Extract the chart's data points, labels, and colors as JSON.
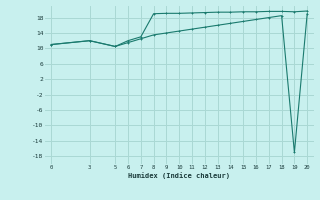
{
  "xlabel": "Humidex (Indice chaleur)",
  "bg_color": "#c8f0ee",
  "grid_color": "#aad8d4",
  "line_color": "#1a7a6e",
  "xlim": [
    -0.5,
    20.5
  ],
  "ylim": [
    -20,
    21
  ],
  "yticks": [
    -18,
    -14,
    -10,
    -6,
    -2,
    2,
    6,
    10,
    14,
    18
  ],
  "xticks": [
    0,
    3,
    5,
    6,
    7,
    8,
    9,
    10,
    11,
    12,
    13,
    14,
    15,
    16,
    17,
    18,
    19,
    20
  ],
  "upper_x": [
    0,
    3,
    5,
    6,
    7,
    8,
    9,
    10,
    11,
    12,
    13,
    14,
    15,
    16,
    17,
    18,
    19,
    20
  ],
  "upper_y": [
    11,
    12,
    10.5,
    12,
    13,
    19.0,
    19.1,
    19.1,
    19.2,
    19.3,
    19.4,
    19.4,
    19.5,
    19.5,
    19.6,
    19.6,
    19.5,
    19.7
  ],
  "lower_x": [
    0,
    3,
    5,
    6,
    7,
    8,
    9,
    10,
    11,
    12,
    13,
    14,
    15,
    16,
    17,
    18,
    19,
    20
  ],
  "lower_y": [
    11,
    12,
    10.5,
    11.5,
    12.5,
    13.5,
    14.0,
    14.5,
    15.0,
    15.5,
    16.0,
    16.5,
    17.0,
    17.5,
    18.0,
    18.5,
    -17.0,
    19.0
  ]
}
